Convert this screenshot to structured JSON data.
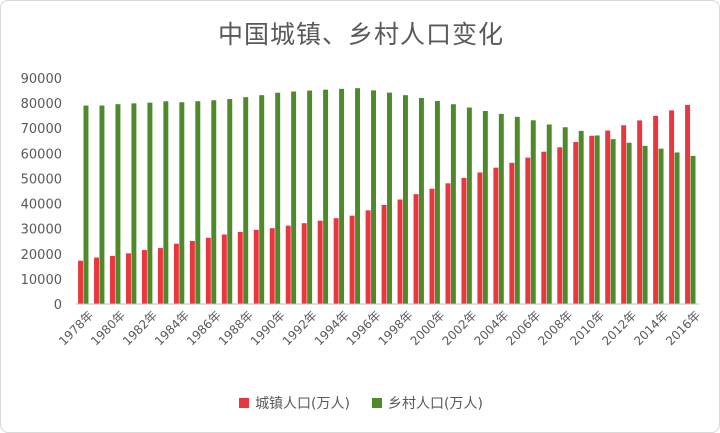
{
  "chart_data": {
    "type": "bar",
    "title": "中国城镇、乡村人口变化",
    "xlabel": "",
    "ylabel": "",
    "ylim": [
      0,
      90000
    ],
    "yticks": [
      0,
      10000,
      20000,
      30000,
      40000,
      50000,
      60000,
      70000,
      80000,
      90000
    ],
    "categories": [
      "1978年",
      "1979年",
      "1980年",
      "1981年",
      "1982年",
      "1983年",
      "1984年",
      "1985年",
      "1986年",
      "1987年",
      "1988年",
      "1989年",
      "1990年",
      "1991年",
      "1992年",
      "1993年",
      "1994年",
      "1995年",
      "1996年",
      "1997年",
      "1998年",
      "1999年",
      "2000年",
      "2001年",
      "2002年",
      "2003年",
      "2004年",
      "2005年",
      "2006年",
      "2007年",
      "2008年",
      "2009年",
      "2010年",
      "2011年",
      "2012年",
      "2013年",
      "2014年",
      "2015年",
      "2016年"
    ],
    "tick_labels": [
      "1978年",
      "1980年",
      "1982年",
      "1984年",
      "1986年",
      "1988年",
      "1990年",
      "1992年",
      "1994年",
      "1996年",
      "1998年",
      "2000年",
      "2002年",
      "2004年",
      "2006年",
      "2008年",
      "2010年",
      "2012年",
      "2014年",
      "2016年"
    ],
    "series": [
      {
        "name": "城镇人口(万人)",
        "color": "#e8373f",
        "values": [
          17245,
          18495,
          19140,
          20171,
          21480,
          22274,
          24017,
          25094,
          26366,
          27674,
          28661,
          29540,
          30195,
          31203,
          32175,
          33173,
          34169,
          35174,
          37304,
          39449,
          41608,
          43748,
          45906,
          48064,
          50212,
          52376,
          54283,
          56212,
          58288,
          60633,
          62403,
          64512,
          66978,
          69079,
          71182,
          73111,
          74916,
          77116,
          79298
        ]
      },
      {
        "name": "乡村人口(万人)",
        "color": "#4f8a2a",
        "values": [
          79014,
          79047,
          79565,
          79901,
          80174,
          80734,
          80340,
          80757,
          81141,
          81626,
          82365,
          83164,
          84138,
          84620,
          84996,
          85344,
          85681,
          85947,
          85085,
          84177,
          83153,
          82038,
          80837,
          79563,
          78241,
          76851,
          75705,
          74544,
          73160,
          71496,
          70399,
          68938,
          67113,
          65656,
          64222,
          62961,
          61866,
          60346,
          58973
        ]
      }
    ],
    "legend": "bottom",
    "grid": false
  }
}
